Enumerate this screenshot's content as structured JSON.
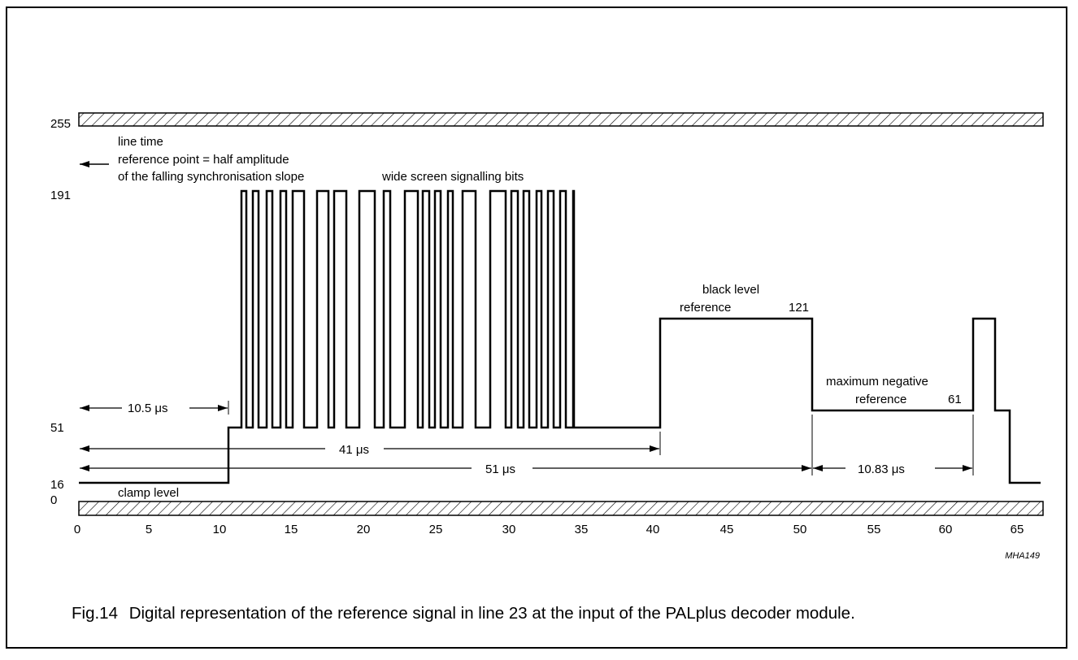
{
  "diagram": {
    "ylevels": [
      {
        "label": "255"
      },
      {
        "label": "191"
      },
      {
        "label": "51"
      },
      {
        "label": "16"
      },
      {
        "label": "0"
      }
    ],
    "xticks": [
      "0",
      "5",
      "10",
      "15",
      "20",
      "25",
      "30",
      "35",
      "40",
      "45",
      "50",
      "55",
      "60",
      "65"
    ],
    "annotations": {
      "line_time": "line time",
      "reference_point": "reference point = half amplitude",
      "falling_slope": "of the falling synchronisation slope",
      "wss_bits": "wide screen signalling bits",
      "black_level": "black level",
      "black_reference": "reference",
      "black_value": "121",
      "max_negative": "maximum negative",
      "max_neg_reference": "reference",
      "max_neg_value": "61",
      "clamp_level": "clamp level"
    },
    "dimensions": {
      "d1": "10.5 μs",
      "d2": "41 μs",
      "d3": "51 μs",
      "d4": "10.83 μs"
    },
    "code": "MHA149"
  },
  "caption": {
    "figure": "Fig.14",
    "text": "Digital representation of the reference signal in line 23 at the input of the PALplus decoder module."
  }
}
